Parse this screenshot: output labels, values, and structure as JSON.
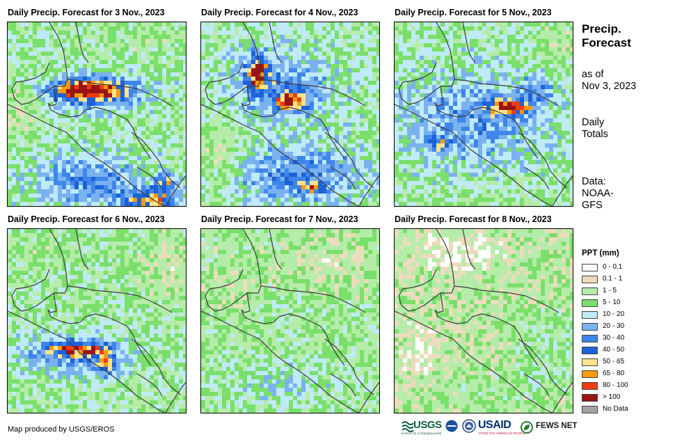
{
  "panels": [
    {
      "title": "Daily Precip. Forecast for 3 Nov., 2023",
      "pattern": "nov3"
    },
    {
      "title": "Daily Precip. Forecast for 4 Nov., 2023",
      "pattern": "nov4"
    },
    {
      "title": "Daily Precip. Forecast for 5 Nov., 2023",
      "pattern": "nov5"
    },
    {
      "title": "Daily Precip. Forecast for 6 Nov., 2023",
      "pattern": "nov6"
    },
    {
      "title": "Daily Precip. Forecast for 7 Nov., 2023",
      "pattern": "nov7"
    },
    {
      "title": "Daily Precip. Forecast for 8 Nov., 2023",
      "pattern": "nov8"
    }
  ],
  "sidebar": {
    "title_line1": "Precip.",
    "title_line2": "Forecast",
    "asof_line1": "as of",
    "asof_line2": "Nov 3, 2023",
    "totals_line1": "Daily",
    "totals_line2": "Totals",
    "data_line1": "Data:",
    "data_line2": "NOAA-",
    "data_line3": "GFS"
  },
  "legend": {
    "title": "PPT (mm)",
    "items": [
      {
        "label": "0 - 0.1",
        "color": "#ffffff"
      },
      {
        "label": "0.1 - 1",
        "color": "#ecdcbc"
      },
      {
        "label": "1 - 5",
        "color": "#b6ecaa"
      },
      {
        "label": "5 - 10",
        "color": "#7adf6b"
      },
      {
        "label": "10 - 20",
        "color": "#bfeaf7"
      },
      {
        "label": "20 - 30",
        "color": "#7ab2f0"
      },
      {
        "label": "30 - 40",
        "color": "#3f85ea"
      },
      {
        "label": "40 - 50",
        "color": "#1c62d8"
      },
      {
        "label": "50 - 65",
        "color": "#fde48a"
      },
      {
        "label": "65 - 80",
        "color": "#f89b0d"
      },
      {
        "label": "80 - 100",
        "color": "#ef3b12"
      },
      {
        "label": "> 100",
        "color": "#9b1414"
      },
      {
        "label": "No Data",
        "color": "#a3a3a3"
      }
    ]
  },
  "footer": {
    "credit": "Map produced by USGS/EROS",
    "usgs": "USGS",
    "usgs_tagline": "science for a changing world",
    "usaid": "USAID",
    "usaid_tagline": "FROM THE AMERICAN PEOPLE",
    "fewsnet": "FEWS NET"
  }
}
